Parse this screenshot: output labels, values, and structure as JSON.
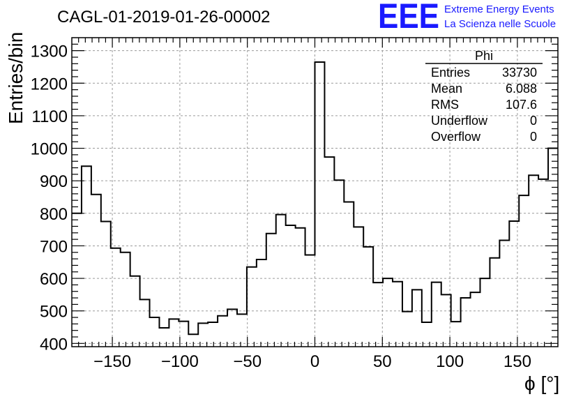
{
  "chart_data": {
    "type": "bar",
    "title": "CAGL-01-2019-01-26-00002",
    "xlabel": "ϕ [°]",
    "ylabel": "Entries/bin",
    "xlim": [
      -180,
      180
    ],
    "ylim": [
      390,
      1340
    ],
    "grid": true,
    "x_ticks": [
      -150,
      -100,
      -50,
      0,
      50,
      100,
      150
    ],
    "x_tick_labels": [
      "−150",
      "−100",
      "−50",
      "0",
      "50",
      "100",
      "150"
    ],
    "y_ticks": [
      400,
      500,
      600,
      700,
      800,
      900,
      1000,
      1100,
      1200,
      1300
    ],
    "bin_width": 7.2,
    "bin_edges_start": -180,
    "values": [
      800,
      945,
      858,
      775,
      693,
      680,
      607,
      535,
      480,
      448,
      475,
      468,
      428,
      462,
      465,
      485,
      505,
      490,
      635,
      658,
      738,
      796,
      763,
      755,
      672,
      1265,
      973,
      902,
      835,
      758,
      697,
      587,
      600,
      590,
      498,
      565,
      465,
      588,
      550,
      467,
      540,
      557,
      600,
      663,
      717,
      776,
      855,
      917,
      905,
      1000
    ],
    "stats": {
      "name": "Phi",
      "rows": [
        {
          "label": "Entries",
          "value": "33730"
        },
        {
          "label": "Mean",
          "value": "6.088"
        },
        {
          "label": "RMS",
          "value": "107.6"
        },
        {
          "label": "Underflow",
          "value": "0"
        },
        {
          "label": "Overflow",
          "value": "0"
        }
      ]
    }
  },
  "logo": {
    "letters": "EEE",
    "line1": "Extreme Energy Events",
    "line2": "La Scienza nelle Scuole",
    "color": "#1a1aff"
  }
}
